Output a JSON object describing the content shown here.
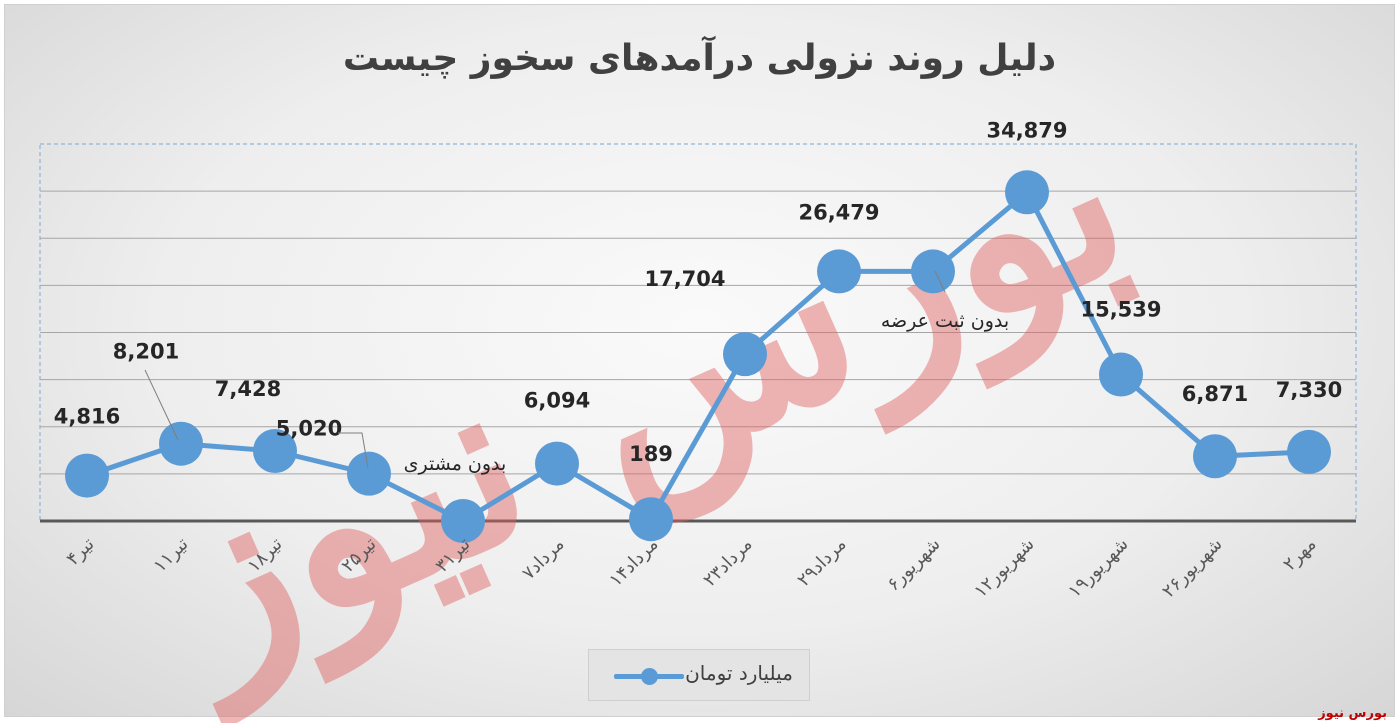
{
  "chart_data": {
    "type": "line",
    "title": "دلیل روند نزولی درآمدهای سخوز چیست",
    "categories": [
      "۴تیر",
      "۱۱تیر",
      "۱۸تیر",
      "۲۵تیر",
      "۳۱تیر",
      "۷مرداد",
      "۱۴مرداد",
      "۲۳مرداد",
      "۲۹مرداد",
      "۶شهریور",
      "۱۲شهریور",
      "۱۹شهریور",
      "۲۶شهریور",
      "۲مهر"
    ],
    "series": [
      {
        "name": "میلیارد تومان",
        "values": [
          4816,
          8201,
          7428,
          5020,
          0,
          6094,
          189,
          17704,
          26479,
          26479,
          34879,
          15539,
          6871,
          7330
        ],
        "labels": [
          "4,816",
          "8,201",
          "7,428",
          "5,020",
          "",
          "6,094",
          "189",
          "17,704",
          "26,479",
          "",
          "34,879",
          "15,539",
          "6,871",
          "7,330"
        ],
        "color": "#5b9bd5"
      }
    ],
    "annotations": [
      "بدون مشتری",
      "بدون ثبت عرضه"
    ],
    "ylim": [
      0,
      40000
    ],
    "grid": true,
    "legend_position": "bottom"
  },
  "watermark": {
    "text": "بورس نیوز",
    "color": "#e06060"
  },
  "source": "بورس نیوز"
}
